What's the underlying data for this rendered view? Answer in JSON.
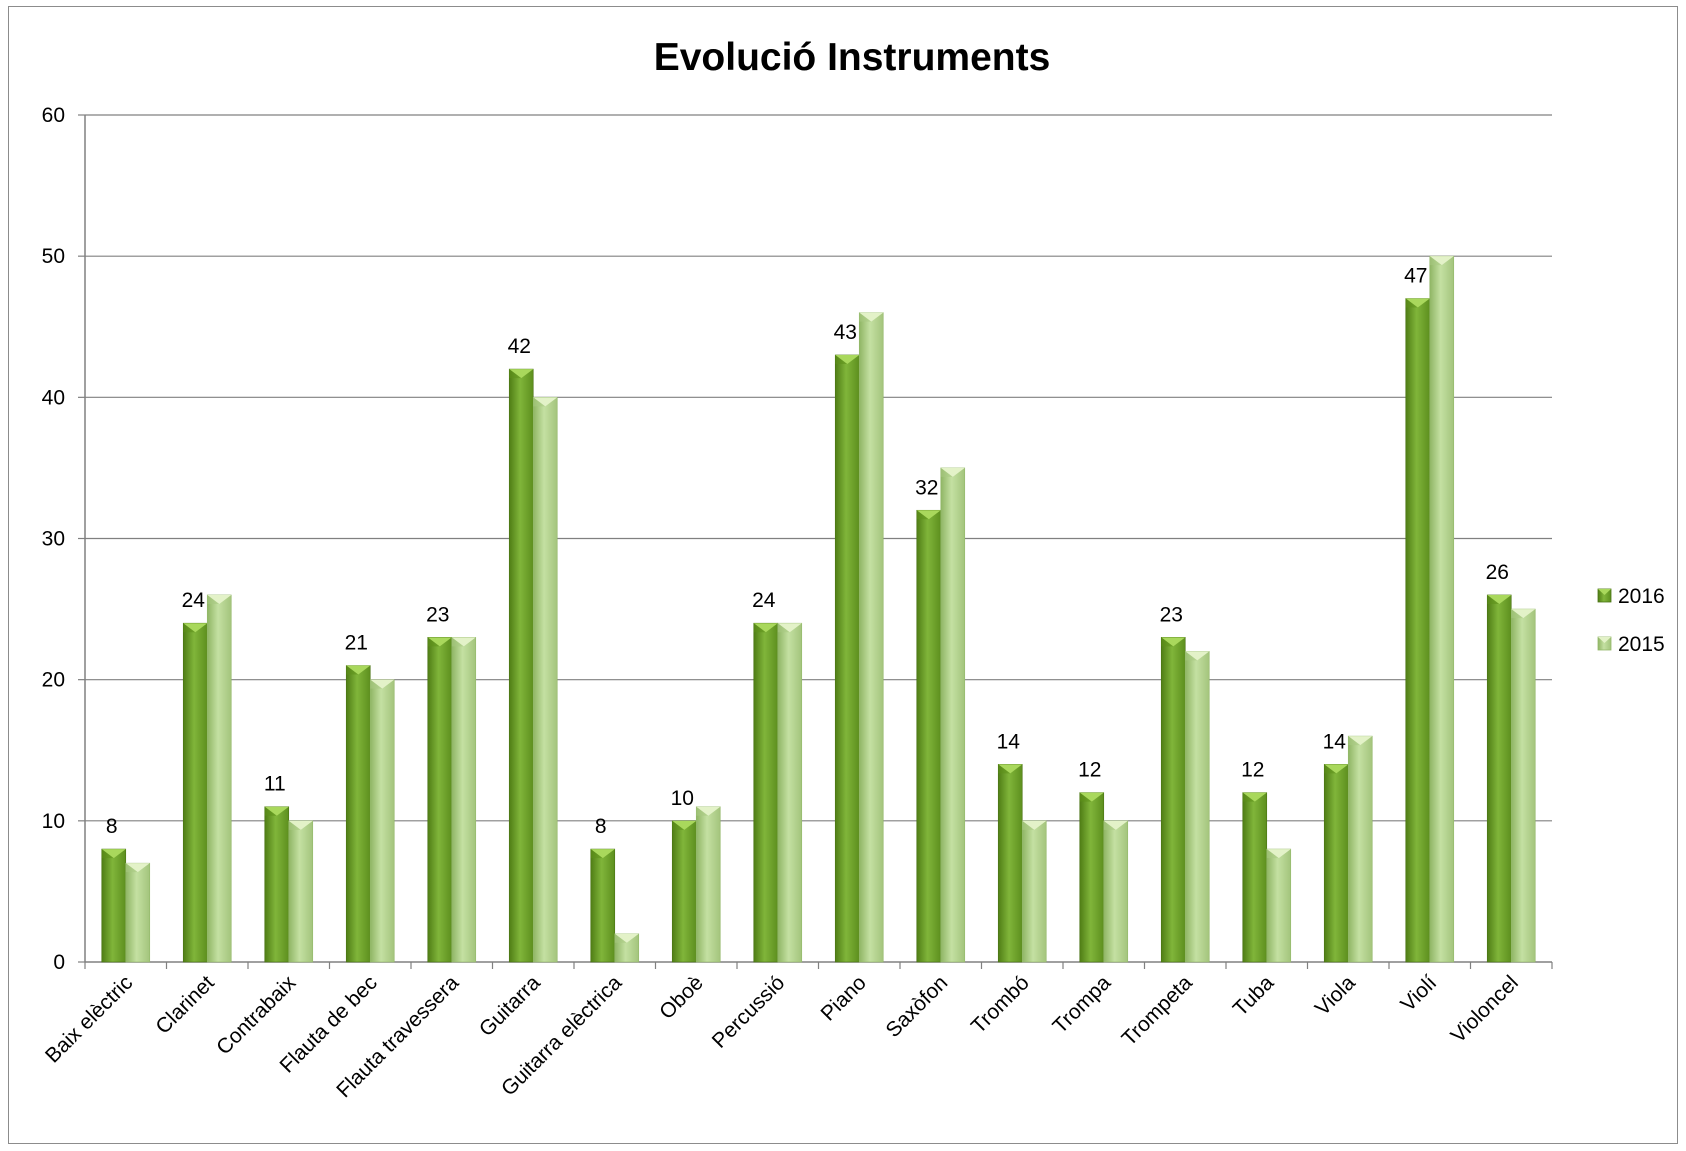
{
  "chart_data": {
    "type": "bar",
    "title": "Evolució Instruments",
    "xlabel": "",
    "ylabel": "",
    "ylim": [
      0,
      60
    ],
    "yticks": [
      "0",
      "10",
      "20",
      "30",
      "40",
      "50",
      "60"
    ],
    "grid": true,
    "legend_position": "right",
    "categories": [
      "Baix elèctric",
      "Clarinet",
      "Contrabaix",
      "Flauta de bec",
      "Flauta travessera",
      "Guitarra",
      "Guitarra elèctrica",
      "Oboè",
      "Percussió",
      "Piano",
      "Saxòfon",
      "Trombó",
      "Trompa",
      "Trompeta",
      "Tuba",
      "Viola",
      "Violí",
      "Violoncel"
    ],
    "series": [
      {
        "name": "2016",
        "values": [
          8,
          24,
          11,
          21,
          23,
          42,
          8,
          10,
          24,
          43,
          32,
          14,
          12,
          23,
          12,
          14,
          47,
          26
        ],
        "color": "#72a52a",
        "data_labels": [
          "8",
          "24",
          "11",
          "21",
          "23",
          "42",
          "8",
          "10",
          "24",
          "43",
          "32",
          "14",
          "12",
          "23",
          "12",
          "14",
          "47",
          "26"
        ]
      },
      {
        "name": "2015",
        "values": [
          7,
          26,
          10,
          20,
          23,
          40,
          2,
          11,
          24,
          46,
          35,
          10,
          10,
          22,
          8,
          16,
          50,
          25
        ],
        "color": "#b3d38b"
      }
    ]
  }
}
